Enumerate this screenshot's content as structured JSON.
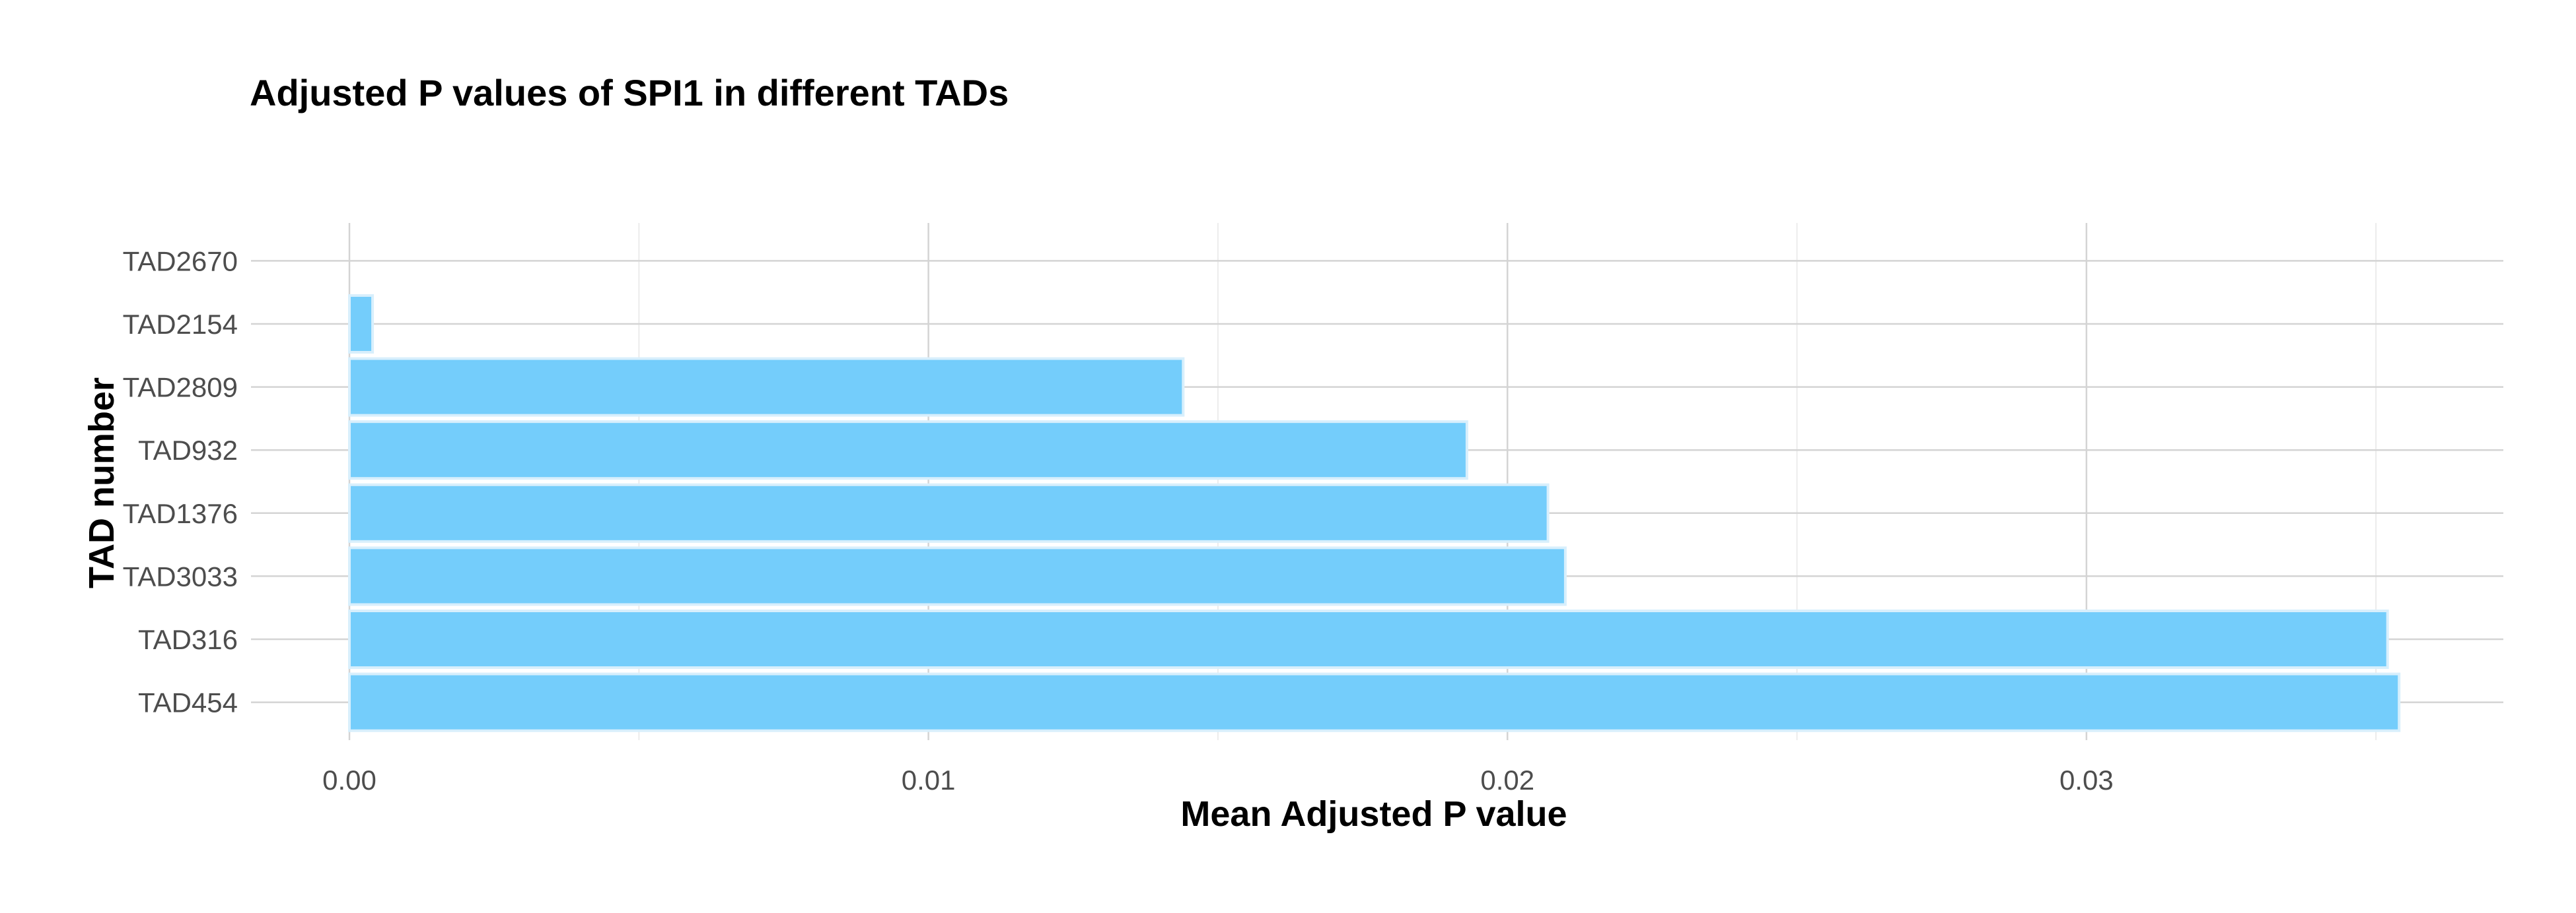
{
  "chart_data": {
    "type": "bar",
    "orientation": "horizontal",
    "title": "Adjusted P values of SPI1 in different TADs",
    "xlabel": "Mean Adjusted P value",
    "ylabel": "TAD number",
    "categories": [
      "TAD454",
      "TAD316",
      "TAD3033",
      "TAD1376",
      "TAD932",
      "TAD2809",
      "TAD2154",
      "TAD2670"
    ],
    "values": [
      0.0354,
      0.0352,
      0.021,
      0.0207,
      0.0193,
      0.0144,
      0.0004,
      0.0
    ],
    "xlim": [
      -0.0017,
      0.0372
    ],
    "xticks": [
      0.0,
      0.01,
      0.02,
      0.03
    ],
    "xtick_labels": [
      "0.00",
      "0.01",
      "0.02",
      "0.03"
    ],
    "grid": true,
    "legend": "none",
    "colors": {
      "bar_fill": "#74cdfb",
      "bar_outline": "#d8effc",
      "grid_major": "#d4d4d4",
      "grid_minor": "#ececec",
      "text": "#4d4d4d"
    }
  }
}
